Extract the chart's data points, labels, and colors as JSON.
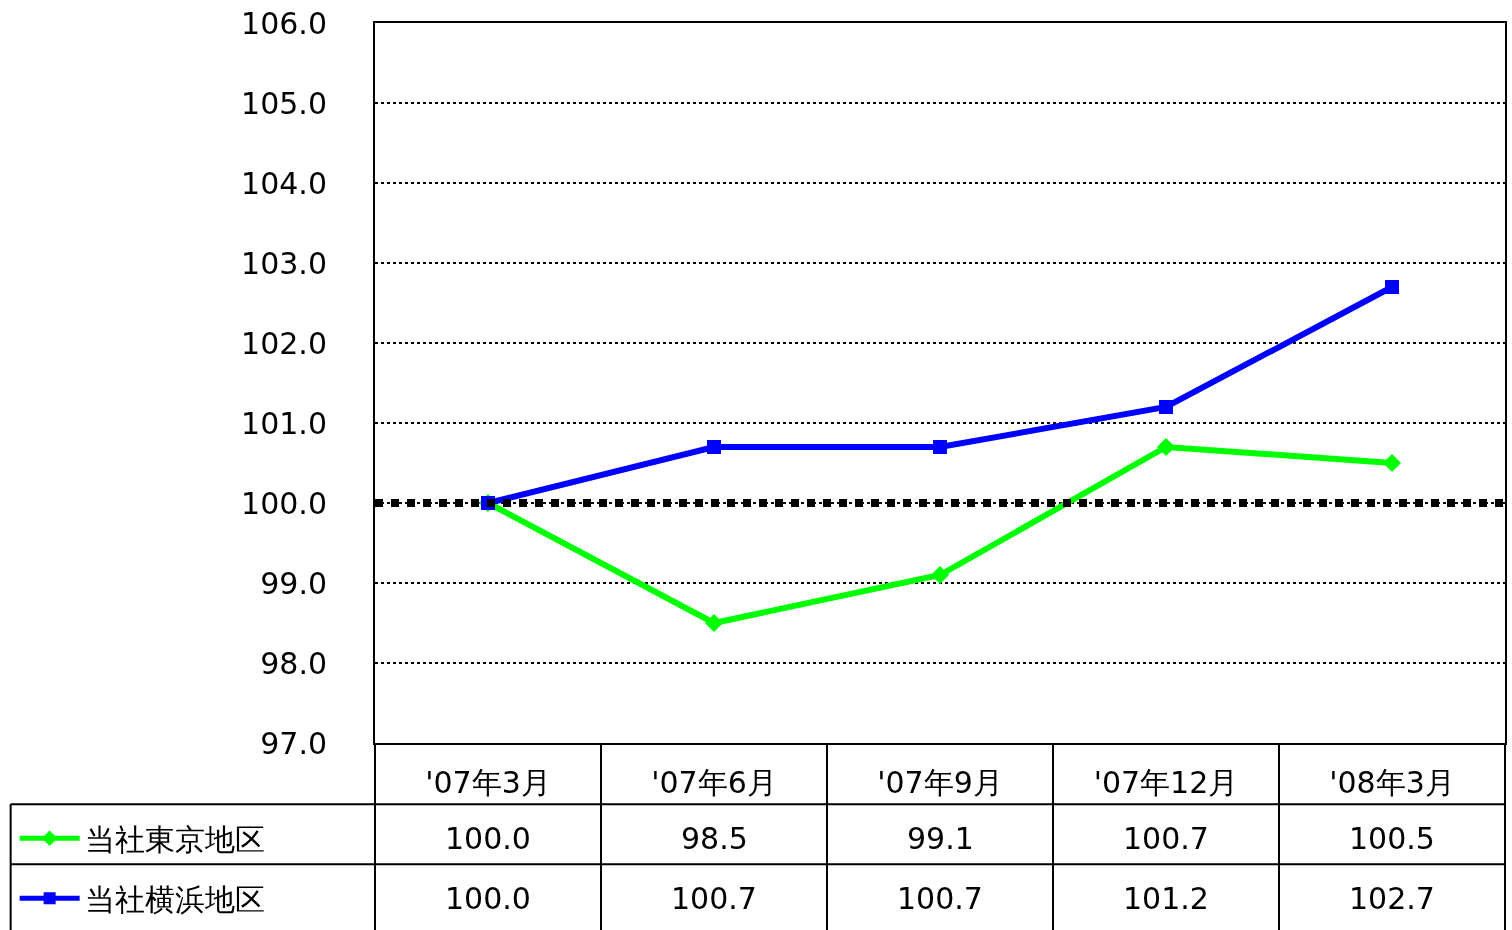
{
  "chart_data": {
    "type": "line",
    "categories": [
      "'07年3月",
      "'07年6月",
      "'07年9月",
      "'07年12月",
      "'08年3月"
    ],
    "series": [
      {
        "name": "当社東京地区",
        "color": "#00ff00",
        "marker": "diamond",
        "values": [
          100.0,
          98.5,
          99.1,
          100.7,
          100.5
        ],
        "value_labels": [
          "100.0",
          "98.5",
          "99.1",
          "100.7",
          "100.5"
        ]
      },
      {
        "name": "当社横浜地区",
        "color": "#0000ff",
        "marker": "square",
        "values": [
          100.0,
          100.7,
          100.7,
          101.2,
          102.7
        ],
        "value_labels": [
          "100.0",
          "100.7",
          "100.7",
          "101.2",
          "102.7"
        ]
      }
    ],
    "ylim": [
      97,
      106
    ],
    "yticks": [
      {
        "value": 97,
        "label": "97.0"
      },
      {
        "value": 98,
        "label": "98.0"
      },
      {
        "value": 99,
        "label": "99.0"
      },
      {
        "value": 100,
        "label": "100.0"
      },
      {
        "value": 101,
        "label": "101.0"
      },
      {
        "value": 102,
        "label": "102.0"
      },
      {
        "value": 103,
        "label": "103.0"
      },
      {
        "value": 104,
        "label": "104.0"
      },
      {
        "value": 105,
        "label": "105.0"
      },
      {
        "value": 106,
        "label": "106.0"
      }
    ],
    "ref_lines": [
      {
        "axis": "y",
        "value": 100,
        "color": "#000000",
        "line_style": "dotted"
      }
    ],
    "grid": "y",
    "line_style": "solid",
    "legend": "bottom left"
  }
}
